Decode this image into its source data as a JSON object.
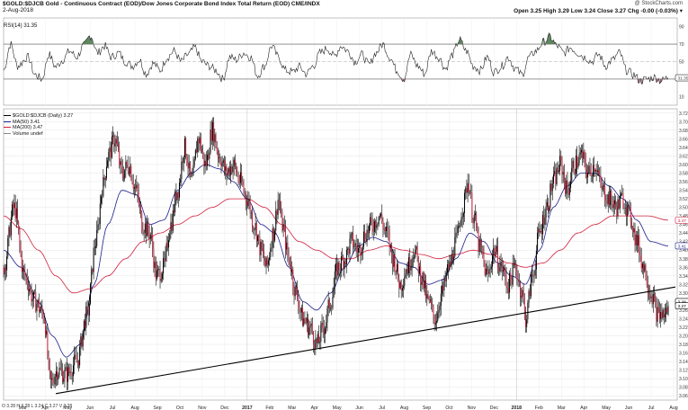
{
  "header": {
    "title": "$GOLD:$DJCB  Gold - Continuous Contract (EOD)/Dow Jones Corporate Bond Index Total Return (EOD)  CME/INDX",
    "date": "2-Aug-2018",
    "quote": "Open 3.25  High 3.29  Low 3.24  Close 3.27  Chg -0.00 (-0.03%) ▾",
    "watermark": "@ StockCharts.com"
  },
  "rsi_panel": {
    "label": "RSI(14) 31.35",
    "ticks": [
      "90",
      "70",
      "50",
      "30",
      "10"
    ],
    "last_badge": "31.35"
  },
  "price_panel": {
    "legend": {
      "main": "$GOLD:$DJCB (Daily) 3.27",
      "ma50": "MA(50) 3.41",
      "ma200": "MA(200) 3.47",
      "volume": "Volume undef"
    },
    "ticks": [
      "3.72",
      "3.70",
      "3.68",
      "3.66",
      "3.64",
      "3.62",
      "3.60",
      "3.58",
      "3.56",
      "3.54",
      "3.52",
      "3.50",
      "3.48",
      "3.46",
      "3.44",
      "3.42",
      "3.40",
      "3.38",
      "3.36",
      "3.34",
      "3.32",
      "3.30",
      "3.28",
      "3.26",
      "3.24",
      "3.22",
      "3.20",
      "3.18",
      "3.16",
      "3.14",
      "3.12",
      "3.10",
      "3.08",
      "3.06"
    ],
    "badges": {
      "ma200": "3.47",
      "ma50": "3.41",
      "trend": "3.28",
      "close": "3.27"
    }
  },
  "x_axis": {
    "ohlc_strip": "O 3.28  H 3.28  L 3.24  C 3.27  V 3.28",
    "labels": [
      {
        "t": "Mar",
        "bold": false
      },
      {
        "t": "Apr",
        "bold": false
      },
      {
        "t": "May",
        "bold": false
      },
      {
        "t": "Jun",
        "bold": false
      },
      {
        "t": "Jul",
        "bold": false
      },
      {
        "t": "Aug",
        "bold": false
      },
      {
        "t": "Sep",
        "bold": false
      },
      {
        "t": "Oct",
        "bold": false
      },
      {
        "t": "Nov",
        "bold": false
      },
      {
        "t": "Dec",
        "bold": false
      },
      {
        "t": "2017",
        "bold": true
      },
      {
        "t": "Feb",
        "bold": false
      },
      {
        "t": "Mar",
        "bold": false
      },
      {
        "t": "Apr",
        "bold": false
      },
      {
        "t": "May",
        "bold": false
      },
      {
        "t": "Jun",
        "bold": false
      },
      {
        "t": "Jul",
        "bold": false
      },
      {
        "t": "Aug",
        "bold": false
      },
      {
        "t": "Sep",
        "bold": false
      },
      {
        "t": "Oct",
        "bold": false
      },
      {
        "t": "Nov",
        "bold": false
      },
      {
        "t": "Dec",
        "bold": false
      },
      {
        "t": "2018",
        "bold": true
      },
      {
        "t": "Feb",
        "bold": false
      },
      {
        "t": "Mar",
        "bold": false
      },
      {
        "t": "Apr",
        "bold": false
      },
      {
        "t": "May",
        "bold": false
      },
      {
        "t": "Jun",
        "bold": false
      },
      {
        "t": "Jul",
        "bold": false
      },
      {
        "t": "Aug",
        "bold": false
      }
    ]
  },
  "chart_data": {
    "type": "line",
    "x_units": "months since Jan 2016 (approx)",
    "price_range": [
      3.05,
      3.73
    ],
    "rsi_range": [
      0,
      100
    ],
    "rsi_levels": [
      70,
      50,
      30
    ],
    "price_anchors": [
      [
        2.0,
        3.36
      ],
      [
        2.3,
        3.5
      ],
      [
        2.6,
        3.34
      ],
      [
        2.9,
        3.28
      ],
      [
        3.15,
        3.25
      ],
      [
        3.35,
        3.09
      ],
      [
        3.55,
        3.12
      ],
      [
        3.8,
        3.11
      ],
      [
        4.1,
        3.14
      ],
      [
        4.4,
        3.25
      ],
      [
        4.65,
        3.42
      ],
      [
        4.85,
        3.55
      ],
      [
        5.0,
        3.62
      ],
      [
        5.2,
        3.66
      ],
      [
        5.4,
        3.58
      ],
      [
        5.6,
        3.6
      ],
      [
        5.8,
        3.54
      ],
      [
        6.0,
        3.46
      ],
      [
        6.2,
        3.44
      ],
      [
        6.4,
        3.34
      ],
      [
        6.6,
        3.36
      ],
      [
        6.8,
        3.46
      ],
      [
        7.0,
        3.54
      ],
      [
        7.2,
        3.64
      ],
      [
        7.4,
        3.56
      ],
      [
        7.6,
        3.66
      ],
      [
        7.8,
        3.6
      ],
      [
        8.0,
        3.68
      ],
      [
        8.2,
        3.62
      ],
      [
        8.4,
        3.58
      ],
      [
        8.6,
        3.6
      ],
      [
        8.8,
        3.56
      ],
      [
        9.0,
        3.52
      ],
      [
        9.2,
        3.46
      ],
      [
        9.4,
        3.4
      ],
      [
        9.55,
        3.36
      ],
      [
        9.75,
        3.44
      ],
      [
        9.9,
        3.52
      ],
      [
        10.0,
        3.46
      ],
      [
        10.2,
        3.38
      ],
      [
        10.4,
        3.3
      ],
      [
        10.6,
        3.24
      ],
      [
        10.8,
        3.22
      ],
      [
        11.0,
        3.18
      ],
      [
        11.2,
        3.22
      ],
      [
        11.4,
        3.28
      ],
      [
        11.6,
        3.36
      ],
      [
        11.8,
        3.38
      ],
      [
        12.0,
        3.42
      ],
      [
        12.2,
        3.4
      ],
      [
        12.4,
        3.44
      ],
      [
        12.6,
        3.46
      ],
      [
        12.8,
        3.48
      ],
      [
        13.0,
        3.44
      ],
      [
        13.2,
        3.38
      ],
      [
        13.4,
        3.32
      ],
      [
        13.6,
        3.36
      ],
      [
        13.8,
        3.4
      ],
      [
        14.0,
        3.34
      ],
      [
        14.2,
        3.28
      ],
      [
        14.4,
        3.24
      ],
      [
        14.6,
        3.3
      ],
      [
        14.8,
        3.36
      ],
      [
        15.0,
        3.42
      ],
      [
        15.2,
        3.5
      ],
      [
        15.35,
        3.56
      ],
      [
        15.5,
        3.48
      ],
      [
        15.7,
        3.4
      ],
      [
        15.9,
        3.34
      ],
      [
        16.1,
        3.4
      ],
      [
        16.3,
        3.36
      ],
      [
        16.5,
        3.32
      ],
      [
        16.7,
        3.36
      ],
      [
        16.9,
        3.3
      ],
      [
        17.0,
        3.24
      ],
      [
        17.2,
        3.34
      ],
      [
        17.4,
        3.44
      ],
      [
        17.6,
        3.5
      ],
      [
        17.8,
        3.56
      ],
      [
        18.0,
        3.6
      ],
      [
        18.2,
        3.54
      ],
      [
        18.4,
        3.6
      ],
      [
        18.6,
        3.62
      ],
      [
        18.8,
        3.58
      ],
      [
        19.0,
        3.6
      ],
      [
        19.2,
        3.54
      ],
      [
        19.4,
        3.52
      ],
      [
        19.6,
        3.5
      ],
      [
        19.8,
        3.52
      ],
      [
        20.0,
        3.48
      ],
      [
        20.2,
        3.42
      ],
      [
        20.4,
        3.36
      ],
      [
        20.6,
        3.3
      ],
      [
        20.8,
        3.25
      ],
      [
        21.0,
        3.25
      ],
      [
        21.1,
        3.27
      ]
    ],
    "ma50_anchors": [
      [
        2.0,
        3.4
      ],
      [
        2.5,
        3.36
      ],
      [
        3.0,
        3.28
      ],
      [
        3.4,
        3.2
      ],
      [
        3.8,
        3.15
      ],
      [
        4.2,
        3.18
      ],
      [
        4.6,
        3.32
      ],
      [
        5.0,
        3.46
      ],
      [
        5.4,
        3.54
      ],
      [
        5.8,
        3.53
      ],
      [
        6.2,
        3.46
      ],
      [
        6.6,
        3.47
      ],
      [
        7.0,
        3.54
      ],
      [
        7.4,
        3.58
      ],
      [
        7.8,
        3.6
      ],
      [
        8.2,
        3.59
      ],
      [
        8.6,
        3.56
      ],
      [
        9.0,
        3.52
      ],
      [
        9.4,
        3.46
      ],
      [
        9.8,
        3.44
      ],
      [
        10.2,
        3.36
      ],
      [
        10.6,
        3.28
      ],
      [
        11.0,
        3.26
      ],
      [
        11.4,
        3.3
      ],
      [
        11.8,
        3.36
      ],
      [
        12.2,
        3.41
      ],
      [
        12.6,
        3.43
      ],
      [
        13.0,
        3.42
      ],
      [
        13.4,
        3.37
      ],
      [
        13.8,
        3.36
      ],
      [
        14.2,
        3.32
      ],
      [
        14.6,
        3.33
      ],
      [
        15.0,
        3.38
      ],
      [
        15.4,
        3.44
      ],
      [
        15.8,
        3.42
      ],
      [
        16.2,
        3.37
      ],
      [
        16.6,
        3.34
      ],
      [
        17.0,
        3.32
      ],
      [
        17.4,
        3.4
      ],
      [
        17.8,
        3.5
      ],
      [
        18.2,
        3.55
      ],
      [
        18.6,
        3.58
      ],
      [
        19.0,
        3.58
      ],
      [
        19.4,
        3.55
      ],
      [
        19.8,
        3.52
      ],
      [
        20.2,
        3.47
      ],
      [
        20.6,
        3.42
      ],
      [
        21.1,
        3.41
      ]
    ],
    "ma200_anchors": [
      [
        2.0,
        3.48
      ],
      [
        2.5,
        3.45
      ],
      [
        3.0,
        3.4
      ],
      [
        3.5,
        3.34
      ],
      [
        4.0,
        3.3
      ],
      [
        4.5,
        3.31
      ],
      [
        5.0,
        3.34
      ],
      [
        5.5,
        3.38
      ],
      [
        6.0,
        3.42
      ],
      [
        6.5,
        3.44
      ],
      [
        7.0,
        3.46
      ],
      [
        7.5,
        3.48
      ],
      [
        8.0,
        3.5
      ],
      [
        8.5,
        3.52
      ],
      [
        9.0,
        3.52
      ],
      [
        9.5,
        3.5
      ],
      [
        10.0,
        3.46
      ],
      [
        10.5,
        3.42
      ],
      [
        11.0,
        3.4
      ],
      [
        11.5,
        3.38
      ],
      [
        12.0,
        3.38
      ],
      [
        12.5,
        3.4
      ],
      [
        13.0,
        3.41
      ],
      [
        13.5,
        3.4
      ],
      [
        14.0,
        3.39
      ],
      [
        14.5,
        3.38
      ],
      [
        15.0,
        3.39
      ],
      [
        15.5,
        3.4
      ],
      [
        16.0,
        3.39
      ],
      [
        16.5,
        3.37
      ],
      [
        17.0,
        3.36
      ],
      [
        17.5,
        3.37
      ],
      [
        18.0,
        3.4
      ],
      [
        18.5,
        3.44
      ],
      [
        19.0,
        3.46
      ],
      [
        19.5,
        3.48
      ],
      [
        20.0,
        3.48
      ],
      [
        20.5,
        3.48
      ],
      [
        21.1,
        3.47
      ]
    ],
    "trendline": [
      [
        3.5,
        3.065
      ],
      [
        21.1,
        3.31
      ]
    ],
    "rsi_anchors": [
      [
        2.0,
        40
      ],
      [
        2.2,
        70
      ],
      [
        2.4,
        45
      ],
      [
        2.7,
        55
      ],
      [
        2.9,
        35
      ],
      [
        3.1,
        30
      ],
      [
        3.3,
        58
      ],
      [
        3.5,
        44
      ],
      [
        3.7,
        52
      ],
      [
        3.9,
        62
      ],
      [
        4.1,
        55
      ],
      [
        4.3,
        68
      ],
      [
        4.5,
        80
      ],
      [
        4.7,
        60
      ],
      [
        4.9,
        68
      ],
      [
        5.1,
        55
      ],
      [
        5.3,
        60
      ],
      [
        5.5,
        50
      ],
      [
        5.7,
        45
      ],
      [
        5.9,
        52
      ],
      [
        6.1,
        36
      ],
      [
        6.3,
        48
      ],
      [
        6.5,
        40
      ],
      [
        6.7,
        55
      ],
      [
        6.9,
        62
      ],
      [
        7.1,
        50
      ],
      [
        7.3,
        58
      ],
      [
        7.5,
        66
      ],
      [
        7.7,
        50
      ],
      [
        7.9,
        45
      ],
      [
        8.1,
        40
      ],
      [
        8.3,
        30
      ],
      [
        8.5,
        55
      ],
      [
        8.7,
        52
      ],
      [
        8.9,
        60
      ],
      [
        9.1,
        55
      ],
      [
        9.3,
        34
      ],
      [
        9.5,
        45
      ],
      [
        9.7,
        68
      ],
      [
        9.9,
        55
      ],
      [
        10.1,
        40
      ],
      [
        10.3,
        38
      ],
      [
        10.5,
        44
      ],
      [
        10.7,
        36
      ],
      [
        10.9,
        45
      ],
      [
        11.1,
        60
      ],
      [
        11.3,
        65
      ],
      [
        11.5,
        56
      ],
      [
        11.7,
        68
      ],
      [
        11.9,
        62
      ],
      [
        12.1,
        50
      ],
      [
        12.3,
        58
      ],
      [
        12.5,
        46
      ],
      [
        12.7,
        60
      ],
      [
        12.9,
        70
      ],
      [
        13.1,
        55
      ],
      [
        13.3,
        40
      ],
      [
        13.5,
        30
      ],
      [
        13.7,
        58
      ],
      [
        13.9,
        45
      ],
      [
        14.1,
        36
      ],
      [
        14.3,
        62
      ],
      [
        14.5,
        55
      ],
      [
        14.7,
        42
      ],
      [
        14.9,
        58
      ],
      [
        15.1,
        75
      ],
      [
        15.3,
        62
      ],
      [
        15.5,
        45
      ],
      [
        15.7,
        40
      ],
      [
        15.9,
        55
      ],
      [
        16.1,
        38
      ],
      [
        16.3,
        44
      ],
      [
        16.5,
        55
      ],
      [
        16.7,
        42
      ],
      [
        16.9,
        35
      ],
      [
        17.1,
        55
      ],
      [
        17.3,
        62
      ],
      [
        17.5,
        72
      ],
      [
        17.7,
        78
      ],
      [
        17.9,
        68
      ],
      [
        18.1,
        60
      ],
      [
        18.3,
        66
      ],
      [
        18.5,
        60
      ],
      [
        18.7,
        55
      ],
      [
        18.9,
        50
      ],
      [
        19.1,
        58
      ],
      [
        19.3,
        45
      ],
      [
        19.5,
        52
      ],
      [
        19.7,
        60
      ],
      [
        19.9,
        40
      ],
      [
        20.1,
        35
      ],
      [
        20.3,
        28
      ],
      [
        20.5,
        30
      ],
      [
        20.7,
        32
      ],
      [
        20.9,
        28
      ],
      [
        21.1,
        31.35
      ]
    ]
  }
}
